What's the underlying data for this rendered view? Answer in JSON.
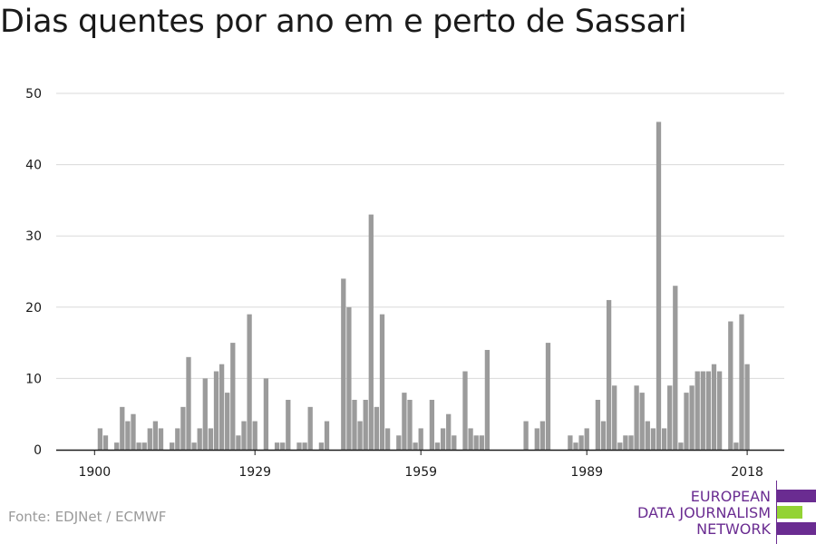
{
  "title": "Dias quentes por ano em e perto de Sassari",
  "source": "Fonte: EDJNet / ECMWF",
  "logo": {
    "line1": "EUROPEAN",
    "line2": "DATA JOURNALISM",
    "line3": "NETWORK"
  },
  "colors": {
    "bar": "#9b9b9b",
    "grid": "#d9d9d9",
    "axis": "#1a1a1a",
    "logo_purple": "#6a2c91",
    "logo_green": "#93d334"
  },
  "chart_data": {
    "type": "bar",
    "title": "Dias quentes por ano em e perto de Sassari",
    "xlabel": "",
    "ylabel": "",
    "ylim": [
      0,
      50
    ],
    "xlim": [
      1900,
      2018
    ],
    "yticks": [
      0,
      10,
      20,
      30,
      40,
      50
    ],
    "xticks": [
      1900,
      1929,
      1959,
      1989,
      2018
    ],
    "grid": true,
    "legend": "none",
    "x": [
      1900,
      1901,
      1902,
      1903,
      1904,
      1905,
      1906,
      1907,
      1908,
      1909,
      1910,
      1911,
      1912,
      1913,
      1914,
      1915,
      1916,
      1917,
      1918,
      1919,
      1920,
      1921,
      1922,
      1923,
      1924,
      1925,
      1926,
      1927,
      1928,
      1929,
      1930,
      1931,
      1932,
      1933,
      1934,
      1935,
      1936,
      1937,
      1938,
      1939,
      1940,
      1941,
      1942,
      1943,
      1944,
      1945,
      1946,
      1947,
      1948,
      1949,
      1950,
      1951,
      1952,
      1953,
      1954,
      1955,
      1956,
      1957,
      1958,
      1959,
      1960,
      1961,
      1962,
      1963,
      1964,
      1965,
      1966,
      1967,
      1968,
      1969,
      1970,
      1971,
      1972,
      1973,
      1974,
      1975,
      1976,
      1977,
      1978,
      1979,
      1980,
      1981,
      1982,
      1983,
      1984,
      1985,
      1986,
      1987,
      1988,
      1989,
      1990,
      1991,
      1992,
      1993,
      1994,
      1995,
      1996,
      1997,
      1998,
      1999,
      2000,
      2001,
      2002,
      2003,
      2004,
      2005,
      2006,
      2007,
      2008,
      2009,
      2010,
      2011,
      2012,
      2013,
      2014,
      2015,
      2016,
      2017,
      2018
    ],
    "values": [
      0,
      3,
      2,
      0,
      1,
      6,
      4,
      5,
      1,
      1,
      3,
      4,
      3,
      0,
      1,
      3,
      6,
      13,
      1,
      3,
      10,
      3,
      11,
      12,
      8,
      15,
      2,
      4,
      19,
      4,
      0,
      10,
      0,
      1,
      1,
      7,
      0,
      1,
      1,
      6,
      0,
      1,
      4,
      0,
      0,
      24,
      20,
      7,
      4,
      7,
      33,
      6,
      19,
      3,
      0,
      2,
      8,
      7,
      1,
      3,
      0,
      7,
      1,
      3,
      5,
      2,
      0,
      11,
      3,
      2,
      2,
      14,
      0,
      0,
      0,
      0,
      0,
      0,
      4,
      0,
      3,
      4,
      15,
      0,
      0,
      0,
      2,
      1,
      2,
      3,
      0,
      7,
      4,
      21,
      9,
      1,
      2,
      2,
      9,
      8,
      4,
      3,
      46,
      3,
      9,
      23,
      1,
      8,
      9,
      11,
      11,
      11,
      12,
      11,
      0,
      18,
      1,
      19,
      12
    ]
  }
}
